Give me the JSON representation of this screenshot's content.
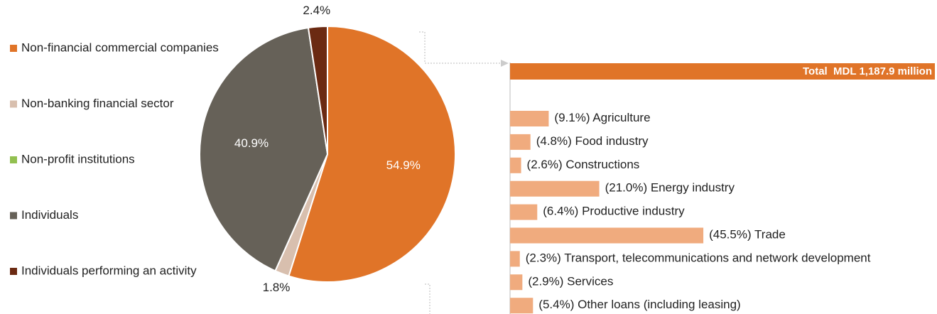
{
  "chart_data": [
    {
      "type": "pie",
      "categories": [
        "Non-financial commercial companies",
        "Non-banking financial sector",
        "Non-profit institutions",
        "Individuals",
        "Individuals performing an activity"
      ],
      "values": [
        54.9,
        1.8,
        0,
        40.9,
        2.4
      ],
      "value_labels": [
        "54.9%",
        "1.8%",
        null,
        "40.9%",
        "2.4%"
      ],
      "colors": [
        "#e07428",
        "#d8bfae",
        "#92c050",
        "#666158",
        "#6b2a12"
      ],
      "legend": "left"
    },
    {
      "type": "bar",
      "orientation": "horizontal",
      "total_label": "Total  MDL 1,187.9 million",
      "total_value": 1187.9,
      "total_color": "#e07428",
      "categories": [
        "Agriculture",
        "Food industry",
        "Constructions",
        "Energy industry",
        "Productive industry",
        "Trade",
        "Transport, telecommunications and network development",
        "Services",
        "Other loans (including leasing)"
      ],
      "values": [
        9.1,
        4.8,
        2.6,
        21.0,
        6.4,
        45.5,
        2.3,
        2.9,
        5.4
      ],
      "value_labels": [
        "(9.1%)",
        "(4.8%)",
        "(2.6%)",
        "(21.0%)",
        "(6.4%)",
        "(45.5%)",
        "(2.3%)",
        "(2.9%)",
        "(5.4%)"
      ],
      "color": "#f0ab7e",
      "xlim": [
        0,
        100
      ]
    }
  ]
}
